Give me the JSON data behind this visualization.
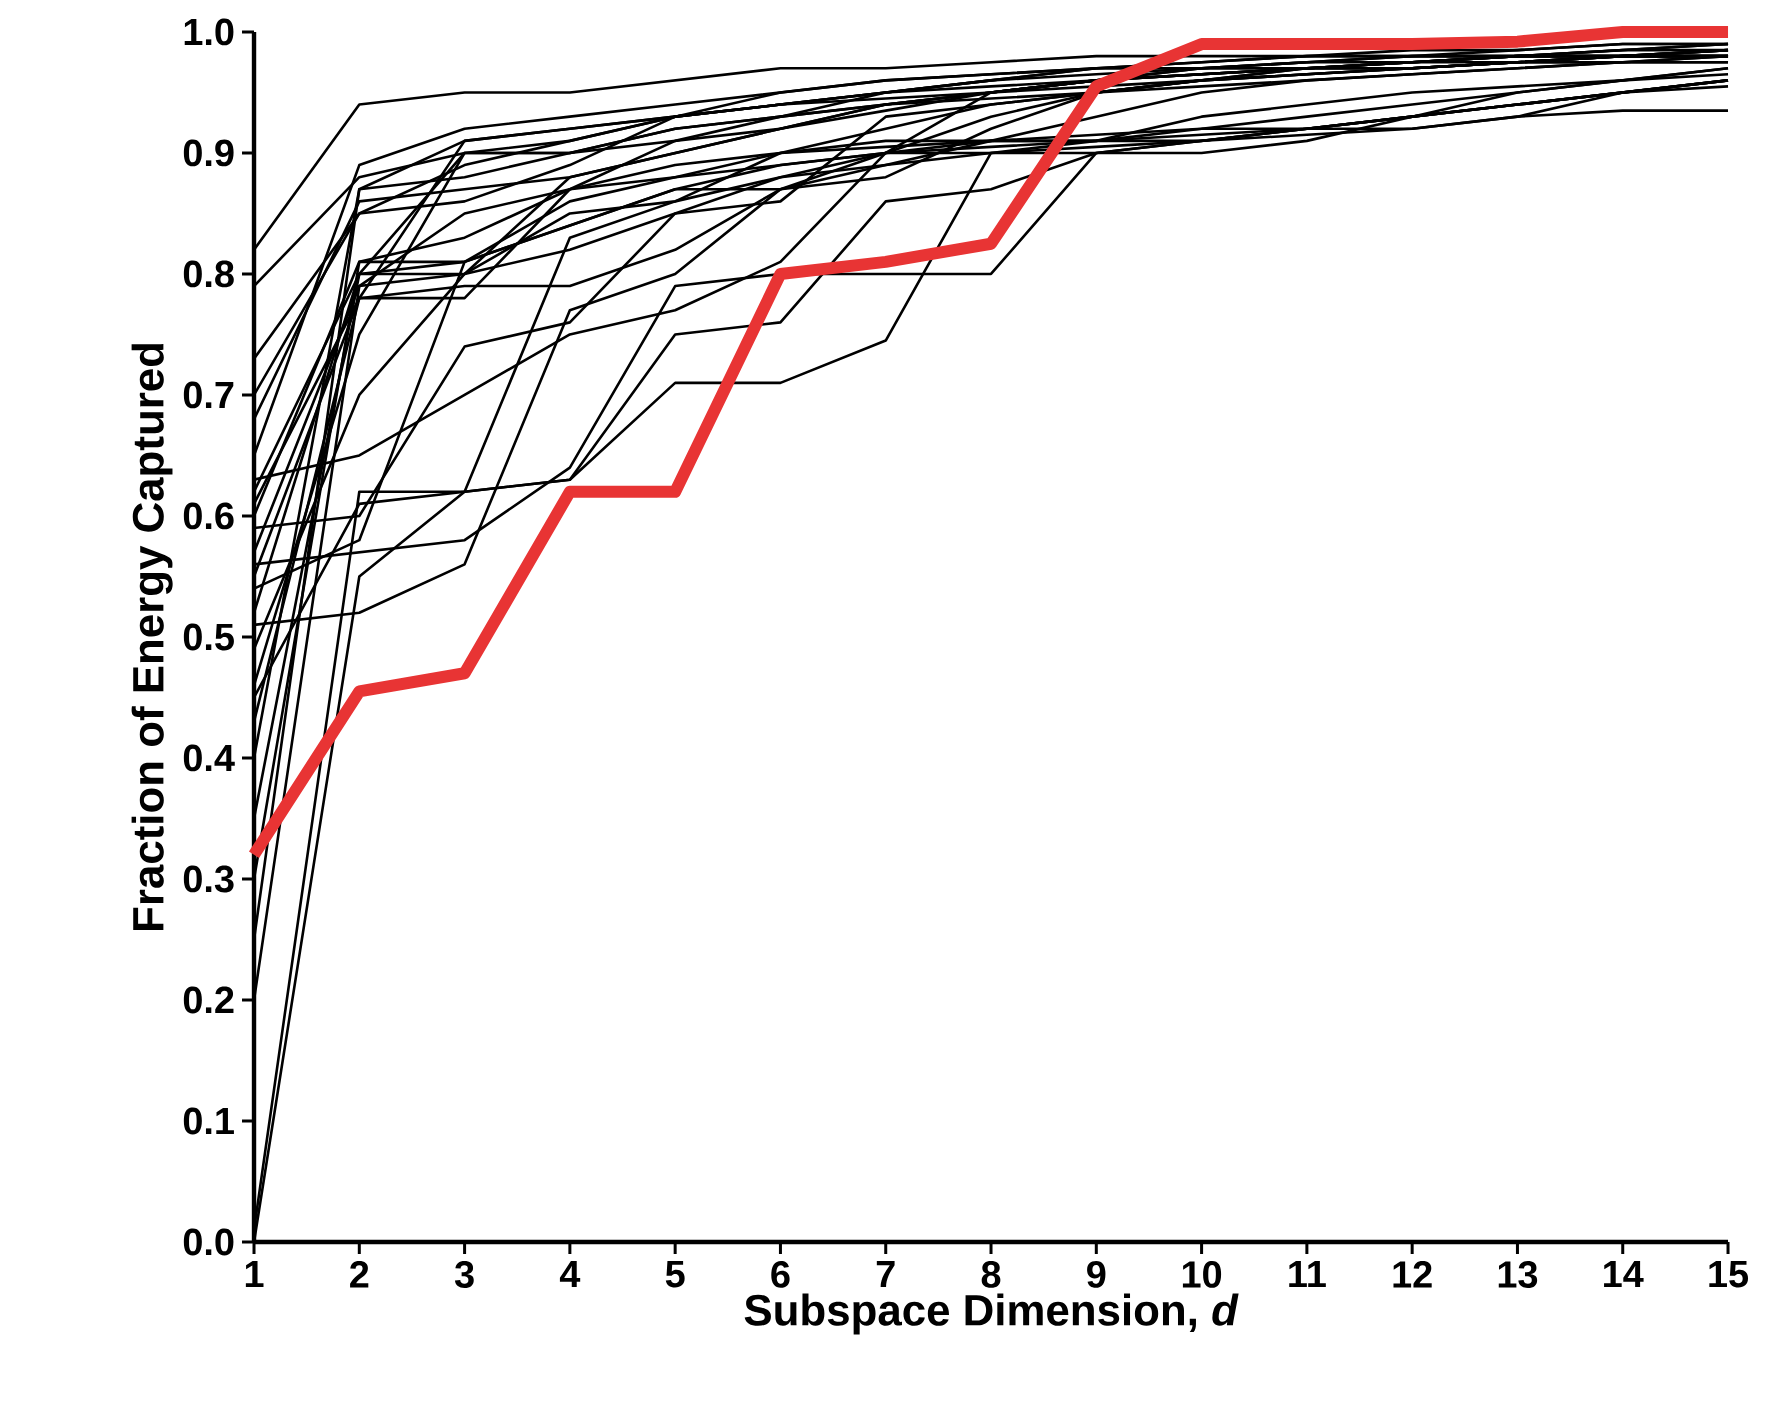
{
  "chart_data": {
    "type": "line",
    "xlabel": "Subspace Dimension, *d*",
    "ylabel": "Fraction of Energy Captured",
    "x": [
      1,
      2,
      3,
      4,
      5,
      6,
      7,
      8,
      9,
      10,
      11,
      12,
      13,
      14,
      15
    ],
    "xlim": [
      1,
      15
    ],
    "xticks": [
      1,
      2,
      3,
      4,
      5,
      6,
      7,
      8,
      9,
      10,
      11,
      12,
      13,
      14,
      15
    ],
    "ylim": [
      0,
      1
    ],
    "yticks": [
      {
        "value": 0,
        "label": "0.0"
      },
      {
        "value": 0.1,
        "label": "0.1"
      },
      {
        "value": 0.2,
        "label": "0.2"
      },
      {
        "value": 0.3,
        "label": "0.3"
      },
      {
        "value": 0.4,
        "label": "0.4"
      },
      {
        "value": 0.5,
        "label": "0.5"
      },
      {
        "value": 0.6,
        "label": "0.6"
      },
      {
        "value": 0.7,
        "label": "0.7"
      },
      {
        "value": 0.8,
        "label": "0.8"
      },
      {
        "value": 0.9,
        "label": "0.9"
      },
      {
        "value": 1,
        "label": "1.0"
      }
    ],
    "marker": "none",
    "line_style": "solid",
    "series": [
      {
        "color": "#000000",
        "values": [
          0.82,
          0.94,
          0.95,
          0.95,
          0.96,
          0.97,
          0.97,
          0.975,
          0.98,
          0.98,
          0.98,
          0.985,
          0.985,
          0.99,
          0.99
        ]
      },
      {
        "color": "#000000",
        "values": [
          0.79,
          0.88,
          0.9,
          0.9,
          0.92,
          0.93,
          0.95,
          0.96,
          0.97,
          0.975,
          0.98,
          0.98,
          0.98,
          0.985,
          0.985
        ]
      },
      {
        "color": "#000000",
        "values": [
          0.7,
          0.85,
          0.89,
          0.91,
          0.93,
          0.94,
          0.95,
          0.96,
          0.97,
          0.97,
          0.975,
          0.98,
          0.98,
          0.98,
          0.98
        ]
      },
      {
        "color": "#000000",
        "values": [
          0.65,
          0.89,
          0.92,
          0.93,
          0.94,
          0.95,
          0.96,
          0.965,
          0.97,
          0.97,
          0.975,
          0.975,
          0.98,
          0.98,
          0.985
        ]
      },
      {
        "color": "#000000",
        "values": [
          0.62,
          0.8,
          0.81,
          0.86,
          0.88,
          0.9,
          0.91,
          0.91,
          0.915,
          0.92,
          0.93,
          0.94,
          0.95,
          0.96,
          0.97
        ]
      },
      {
        "color": "#000000",
        "values": [
          0.6,
          0.81,
          0.83,
          0.87,
          0.89,
          0.9,
          0.905,
          0.91,
          0.91,
          0.92,
          0.92,
          0.93,
          0.94,
          0.95,
          0.96
        ]
      },
      {
        "color": "#000000",
        "values": [
          0.57,
          0.79,
          0.8,
          0.85,
          0.86,
          0.88,
          0.9,
          0.91,
          0.91,
          0.91,
          0.92,
          0.92,
          0.93,
          0.935,
          0.935
        ]
      },
      {
        "color": "#000000",
        "values": [
          0.55,
          0.78,
          0.78,
          0.87,
          0.91,
          0.93,
          0.94,
          0.95,
          0.96,
          0.965,
          0.97,
          0.97,
          0.975,
          0.98,
          0.98
        ]
      },
      {
        "color": "#000000",
        "values": [
          0.52,
          0.8,
          0.8,
          0.88,
          0.9,
          0.92,
          0.935,
          0.95,
          0.96,
          0.965,
          0.97,
          0.97,
          0.975,
          0.975,
          0.98
        ]
      },
      {
        "color": "#000000",
        "values": [
          0.46,
          0.75,
          0.9,
          0.91,
          0.93,
          0.94,
          0.95,
          0.955,
          0.96,
          0.965,
          0.97,
          0.975,
          0.975,
          0.98,
          0.98
        ]
      },
      {
        "color": "#000000",
        "values": [
          0.43,
          0.78,
          0.91,
          0.92,
          0.93,
          0.94,
          0.95,
          0.96,
          0.965,
          0.97,
          0.97,
          0.975,
          0.98,
          0.98,
          0.985
        ]
      },
      {
        "color": "#000000",
        "values": [
          0.4,
          0.87,
          0.88,
          0.9,
          0.92,
          0.93,
          0.94,
          0.95,
          0.955,
          0.96,
          0.965,
          0.97,
          0.975,
          0.98,
          0.98
        ]
      },
      {
        "color": "#000000",
        "values": [
          0.35,
          0.8,
          0.9,
          0.9,
          0.91,
          0.92,
          0.94,
          0.945,
          0.95,
          0.955,
          0.96,
          0.965,
          0.97,
          0.975,
          0.975
        ]
      },
      {
        "color": "#000000",
        "values": [
          0.3,
          0.81,
          0.81,
          0.84,
          0.87,
          0.89,
          0.9,
          0.9,
          0.905,
          0.91,
          0.915,
          0.92,
          0.93,
          0.95,
          0.96
        ]
      },
      {
        "color": "#000000",
        "values": [
          0.25,
          0.87,
          0.91,
          0.92,
          0.93,
          0.94,
          0.945,
          0.95,
          0.96,
          0.965,
          0.97,
          0.97,
          0.975,
          0.975,
          0.98
        ]
      },
      {
        "color": "#000000",
        "values": [
          0.2,
          0.79,
          0.85,
          0.87,
          0.88,
          0.89,
          0.9,
          0.905,
          0.91,
          0.915,
          0.92,
          0.93,
          0.94,
          0.95,
          0.96
        ]
      },
      {
        "color": "#000000",
        "values": [
          0.0,
          0.55,
          0.62,
          0.63,
          0.75,
          0.76,
          0.86,
          0.87,
          0.9,
          0.91,
          0.92,
          0.93,
          0.94,
          0.95,
          0.96
        ]
      },
      {
        "color": "#000000",
        "values": [
          0.01,
          0.62,
          0.62,
          0.63,
          0.71,
          0.71,
          0.745,
          0.9,
          0.91,
          0.93,
          0.94,
          0.95,
          0.955,
          0.96,
          0.97
        ]
      },
      {
        "color": "#000000",
        "values": [
          0.56,
          0.57,
          0.58,
          0.64,
          0.79,
          0.8,
          0.8,
          0.8,
          0.9,
          0.9,
          0.91,
          0.93,
          0.95,
          0.96,
          0.965
        ]
      },
      {
        "color": "#000000",
        "values": [
          0.63,
          0.65,
          0.7,
          0.75,
          0.77,
          0.81,
          0.9,
          0.95,
          0.96,
          0.97,
          0.975,
          0.98,
          0.98,
          0.985,
          0.99
        ]
      },
      {
        "color": "#000000",
        "values": [
          0.59,
          0.6,
          0.74,
          0.76,
          0.85,
          0.86,
          0.93,
          0.94,
          0.95,
          0.96,
          0.965,
          0.97,
          0.975,
          0.98,
          0.98
        ]
      },
      {
        "color": "#000000",
        "values": [
          0.51,
          0.52,
          0.56,
          0.77,
          0.8,
          0.87,
          0.88,
          0.92,
          0.95,
          0.96,
          0.97,
          0.975,
          0.98,
          0.98,
          0.985
        ]
      },
      {
        "color": "#000000",
        "values": [
          0.45,
          0.61,
          0.62,
          0.83,
          0.86,
          0.9,
          0.92,
          0.94,
          0.95,
          0.96,
          0.965,
          0.97,
          0.975,
          0.98,
          0.98
        ]
      },
      {
        "color": "#000000",
        "values": [
          0.68,
          0.86,
          0.87,
          0.88,
          0.9,
          0.92,
          0.94,
          0.95,
          0.96,
          0.97,
          0.97,
          0.975,
          0.98,
          0.98,
          0.985
        ]
      },
      {
        "color": "#000000",
        "values": [
          0.73,
          0.85,
          0.86,
          0.89,
          0.93,
          0.95,
          0.96,
          0.965,
          0.97,
          0.975,
          0.98,
          0.98,
          0.985,
          0.99,
          0.99
        ]
      },
      {
        "color": "#000000",
        "values": [
          0.49,
          0.7,
          0.8,
          0.82,
          0.85,
          0.88,
          0.89,
          0.9,
          0.9,
          0.91,
          0.92,
          0.93,
          0.94,
          0.95,
          0.955
        ]
      },
      {
        "color": "#000000",
        "values": [
          0.54,
          0.58,
          0.81,
          0.84,
          0.87,
          0.87,
          0.89,
          0.91,
          0.93,
          0.95,
          0.96,
          0.965,
          0.97,
          0.975,
          0.975
        ]
      },
      {
        "color": "#000000",
        "values": [
          0.61,
          0.78,
          0.79,
          0.79,
          0.82,
          0.87,
          0.9,
          0.93,
          0.95,
          0.96,
          0.97,
          0.975,
          0.98,
          0.985,
          0.99
        ]
      },
      {
        "color": "#e83434",
        "values": [
          0.32,
          0.455,
          0.47,
          0.62,
          0.62,
          0.8,
          0.81,
          0.825,
          0.955,
          0.99,
          0.99,
          0.99,
          0.992,
          1.0,
          1.0
        ]
      }
    ]
  }
}
